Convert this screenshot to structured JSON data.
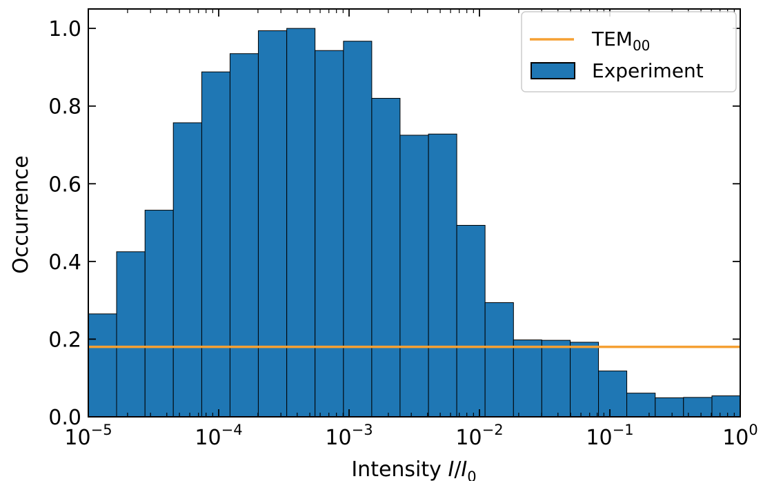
{
  "chart_data": {
    "type": "bar",
    "xscale": "log",
    "xlim": [
      1e-05,
      1
    ],
    "ylim": [
      0,
      1.05
    ],
    "xlabel": {
      "prefix": "Intensity ",
      "var": "I",
      "sep": "/",
      "var2": "I",
      "sub": "0"
    },
    "ylabel": "Occurrence",
    "x_ticks": [
      {
        "base": "10",
        "exp": "−5"
      },
      {
        "base": "10",
        "exp": "−4"
      },
      {
        "base": "10",
        "exp": "−3"
      },
      {
        "base": "10",
        "exp": "−2"
      },
      {
        "base": "10",
        "exp": "−1"
      },
      {
        "base": "10",
        "exp": "0"
      }
    ],
    "y_ticks": [
      "0.0",
      "0.2",
      "0.4",
      "0.6",
      "0.8",
      "1.0"
    ],
    "grid": false,
    "legend_position": "top-right",
    "bin_edges_log10": [
      -5.0,
      -4.783,
      -4.565,
      -4.348,
      -4.13,
      -3.913,
      -3.696,
      -3.478,
      -3.261,
      -3.043,
      -2.826,
      -2.609,
      -2.391,
      -2.174,
      -1.957,
      -1.739,
      -1.522,
      -1.304,
      -1.087,
      -0.87,
      -0.652,
      -0.435,
      -0.217,
      0.0
    ],
    "series": [
      {
        "name": "Experiment",
        "kind": "histogram",
        "color": "#1f77b4",
        "edgecolor": "#000000",
        "values": [
          0.265,
          0.425,
          0.532,
          0.757,
          0.888,
          0.935,
          0.994,
          1.0,
          0.943,
          0.967,
          0.82,
          0.725,
          0.728,
          0.493,
          0.294,
          0.198,
          0.197,
          0.192,
          0.118,
          0.061,
          0.049,
          0.05,
          0.054
        ]
      },
      {
        "name_base": "TEM",
        "name_sub": "00",
        "kind": "horizontal-line",
        "color": "#f5a033",
        "value": 0.18
      }
    ]
  }
}
